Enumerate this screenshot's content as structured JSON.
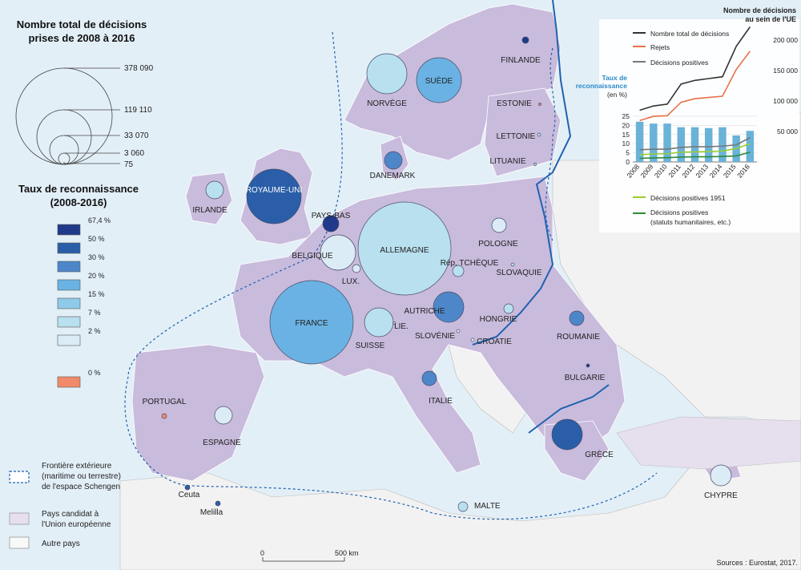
{
  "title_lines": [
    "Nombre total de décisions",
    "prises de 2008 à 2016"
  ],
  "size_legend": {
    "values": [
      "378 090",
      "119 110",
      "33 070",
      "3 060",
      "75"
    ]
  },
  "rate_legend": {
    "title_lines": [
      "Taux de reconnaissance",
      "(2008-2016)"
    ],
    "classes": [
      {
        "label": "67,4 %",
        "color": "#1f3a8a"
      },
      {
        "label": "50 %",
        "color": "#2a5ea8"
      },
      {
        "label": "30 %",
        "color": "#4d87c9"
      },
      {
        "label": "20 %",
        "color": "#6ab2e3"
      },
      {
        "label": "15 %",
        "color": "#8fcbe8"
      },
      {
        "label": "7 %",
        "color": "#b8e0ef"
      },
      {
        "label": "2 %",
        "color": "#dcecf6"
      },
      {
        "label": "0 %",
        "color": "#f08a6b"
      }
    ]
  },
  "map_legend": {
    "schengen": [
      "Frontière extérieure",
      "(maritime ou terrestre)",
      "de l'espace Schengen"
    ],
    "candidate": [
      "Pays candidat à",
      "l'Union européenne"
    ],
    "other": "Autre pays"
  },
  "countries": [
    {
      "name": "FINLANDE",
      "color": "#1f3a8a"
    },
    {
      "name": "NORVÈGE",
      "color": "#b8e0ef"
    },
    {
      "name": "SUÈDE",
      "color": "#6ab2e3"
    },
    {
      "name": "ESTONIE",
      "color": "#f08a6b"
    },
    {
      "name": "LETTONIE",
      "color": "#b8e0ef"
    },
    {
      "name": "LITUANIE",
      "color": "#b8e0ef"
    },
    {
      "name": "DANEMARK",
      "color": "#4d87c9"
    },
    {
      "name": "ROYAUME-UNI",
      "color": "#2a5ea8"
    },
    {
      "name": "IRLANDE",
      "color": "#b8e0ef"
    },
    {
      "name": "PAYS-BAS",
      "color": "#1f3a8a"
    },
    {
      "name": "ALLEMAGNE",
      "color": "#b8e0ef"
    },
    {
      "name": "BELGIQUE",
      "color": "#dcecf6"
    },
    {
      "name": "LUX.",
      "color": "#dcecf6"
    },
    {
      "name": "POLOGNE",
      "color": "#dcecf6"
    },
    {
      "name": "Rép. TCHÈQUE",
      "color": "#b8e0ef"
    },
    {
      "name": "SLOVAQUIE",
      "color": "#b8e0ef"
    },
    {
      "name": "FRANCE",
      "color": "#6ab2e3"
    },
    {
      "name": "AUTRICHE",
      "color": "#4d87c9"
    },
    {
      "name": "HONGRIE",
      "color": "#b8e0ef"
    },
    {
      "name": "SUISSE",
      "color": "#b8e0ef"
    },
    {
      "name": "LIE.",
      "color": "#b8e0ef"
    },
    {
      "name": "SLOVÉNIE",
      "color": "#dcecf6"
    },
    {
      "name": "CROATIE",
      "color": "#dcecf6"
    },
    {
      "name": "ROUMANIE",
      "color": "#4d87c9"
    },
    {
      "name": "BULGARIE",
      "color": "#1f3a8a"
    },
    {
      "name": "ITALIE",
      "color": "#4d87c9"
    },
    {
      "name": "PORTUGAL",
      "color": "#f08a6b"
    },
    {
      "name": "ESPAGNE",
      "color": "#dcecf6"
    },
    {
      "name": "GRÈCE",
      "color": "#2a5ea8"
    },
    {
      "name": "MALTE",
      "color": "#b8e0ef"
    },
    {
      "name": "CHYPRE",
      "color": "#dcecf6"
    },
    {
      "name": "Ceuta",
      "color": "#2a5ea8"
    },
    {
      "name": "Melilla",
      "color": "#2a5ea8"
    }
  ],
  "inset": {
    "title_lines": [
      "Nombre de décisions",
      "au sein de l'UE"
    ],
    "y_axis_label_lines": [
      "Taux de",
      "reconnaissance",
      "(en %)"
    ]
  },
  "scale_bar": {
    "start": "0",
    "end": "500 km"
  },
  "source": "Sources : Eurostat, 2017.",
  "chart_data": {
    "type": "line",
    "title": "Nombre de décisions au sein de l'UE",
    "x": [
      "2008",
      "2009",
      "2010",
      "2011",
      "2012",
      "2013",
      "2014",
      "2015",
      "2016"
    ],
    "right_axis": {
      "ylim": [
        0,
        220000
      ],
      "ticks": [
        "50 000",
        "100 000",
        "150 000",
        "200 000"
      ]
    },
    "left_axis": {
      "ylabel": "Taux de reconnaissance (en %)",
      "ylim": [
        0,
        25
      ],
      "ticks": [
        "0",
        "5",
        "10",
        "15",
        "20",
        "25"
      ]
    },
    "series": [
      {
        "name": "Nombre total de décisions",
        "axis": "right",
        "color": "#333333",
        "values": [
          85000,
          92000,
          95000,
          128000,
          134000,
          137000,
          140000,
          190000,
          222000
        ]
      },
      {
        "name": "Rejets",
        "axis": "right",
        "color": "#e8704a",
        "values": [
          68000,
          75000,
          76000,
          98000,
          104000,
          106000,
          108000,
          152000,
          182000
        ]
      },
      {
        "name": "Décisions positives",
        "axis": "right",
        "color": "#777777",
        "values": [
          20000,
          21000,
          21000,
          24000,
          25000,
          25000,
          26000,
          28000,
          40000
        ]
      },
      {
        "name": "Taux de reconnaissance",
        "type": "bar",
        "axis": "left",
        "color": "#6ab2d8",
        "values": [
          22,
          21,
          21,
          19,
          19,
          18.5,
          19,
          14.5,
          17
        ]
      },
      {
        "name": "Décisions positives 1951",
        "axis": "right",
        "color": "#9acd32",
        "values": [
          12000,
          13000,
          13500,
          16000,
          16500,
          17000,
          18000,
          22000,
          30000
        ]
      },
      {
        "name": "Décisions positives (statuts humanitaires, etc.)",
        "axis": "right",
        "color": "#2e8b3a",
        "values": [
          6000,
          6500,
          7000,
          8000,
          8500,
          8500,
          9000,
          10000,
          16000
        ]
      }
    ],
    "legend": [
      "Nombre total de décisions",
      "Rejets",
      "Décisions positives",
      "Décisions positives 1951",
      "Décisions positives (statuts humanitaires, etc.)"
    ]
  }
}
